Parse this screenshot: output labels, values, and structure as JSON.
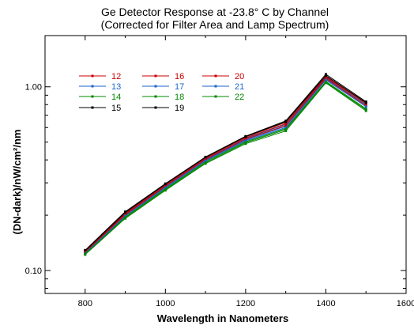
{
  "chart_data": {
    "type": "line",
    "title": "Ge Detector Response at -23.8° C by Channel",
    "subtitle": "(Corrected for Filter Area and Lamp Spectrum)",
    "xlabel": "Wavelength in Nanometers",
    "ylabel": "(DN-dark)/nW/cm²/nm",
    "xlim": [
      700,
      1600
    ],
    "ylim": [
      0.075,
      1.9
    ],
    "yscale": "log",
    "xticks": [
      "800",
      "1000",
      "1200",
      "1400",
      "1600"
    ],
    "yticks": [
      "0.10",
      "1.00"
    ],
    "x": [
      800,
      900,
      1000,
      1100,
      1200,
      1300,
      1400,
      1500
    ],
    "legend_position": "top-left",
    "series": [
      {
        "name": "12",
        "color": "#cc0000",
        "values": [
          0.128,
          0.206,
          0.294,
          0.412,
          0.533,
          0.64,
          1.14,
          0.82
        ]
      },
      {
        "name": "13",
        "color": "#1a66cc",
        "values": [
          0.126,
          0.203,
          0.289,
          0.405,
          0.522,
          0.625,
          1.12,
          0.8
        ]
      },
      {
        "name": "14",
        "color": "#008800",
        "values": [
          0.122,
          0.192,
          0.273,
          0.382,
          0.49,
          0.575,
          1.05,
          0.74
        ]
      },
      {
        "name": "15",
        "color": "#000000",
        "values": [
          0.129,
          0.209,
          0.297,
          0.415,
          0.538,
          0.652,
          1.17,
          0.83
        ]
      },
      {
        "name": "16",
        "color": "#cc0000",
        "values": [
          0.127,
          0.204,
          0.291,
          0.408,
          0.527,
          0.63,
          1.13,
          0.81
        ]
      },
      {
        "name": "17",
        "color": "#1a66cc",
        "values": [
          0.125,
          0.2,
          0.285,
          0.399,
          0.513,
          0.61,
          1.1,
          0.79
        ]
      },
      {
        "name": "18",
        "color": "#008800",
        "values": [
          0.124,
          0.196,
          0.279,
          0.391,
          0.502,
          0.592,
          1.07,
          0.76
        ]
      },
      {
        "name": "19",
        "color": "#000000",
        "values": [
          0.128,
          0.207,
          0.295,
          0.413,
          0.535,
          0.645,
          1.15,
          0.82
        ]
      },
      {
        "name": "20",
        "color": "#cc0000",
        "values": [
          0.126,
          0.201,
          0.287,
          0.402,
          0.518,
          0.615,
          1.11,
          0.79
        ]
      },
      {
        "name": "21",
        "color": "#1a66cc",
        "values": [
          0.124,
          0.198,
          0.282,
          0.395,
          0.508,
          0.6,
          1.09,
          0.78
        ]
      },
      {
        "name": "22",
        "color": "#008800",
        "values": [
          0.123,
          0.194,
          0.276,
          0.386,
          0.496,
          0.585,
          1.06,
          0.75
        ]
      }
    ]
  }
}
